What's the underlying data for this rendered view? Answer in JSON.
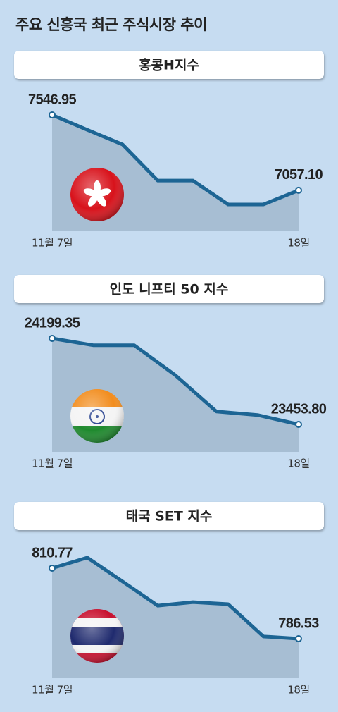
{
  "title": "주요 신흥국 최근 주식시장 추이",
  "chart_data": [
    {
      "type": "line",
      "title": "홍콩H지수",
      "categories": [
        "11월 7일",
        null,
        null,
        null,
        null,
        null,
        null,
        "18일"
      ],
      "values": [
        7546.95,
        7450,
        7355,
        7120,
        7120,
        6965,
        6965,
        7057.1
      ],
      "value_labels": [
        "7546.95",
        null,
        null,
        null,
        null,
        null,
        null,
        "7057.10"
      ],
      "color": "#1d6594"
    },
    {
      "type": "line",
      "title": "인도 니프티 50 지수",
      "categories": [
        "11월 7일",
        null,
        null,
        null,
        null,
        null,
        "18일"
      ],
      "values": [
        24199.35,
        24140,
        24140,
        23880,
        23565,
        23535,
        23453.8
      ],
      "value_labels": [
        "24199.35",
        null,
        null,
        null,
        null,
        null,
        "23453.80"
      ],
      "color": "#1d6594"
    },
    {
      "type": "line",
      "title": "태국 SET 지수",
      "categories": [
        "11월 7일",
        null,
        null,
        null,
        null,
        null,
        null,
        "18일"
      ],
      "values": [
        810.77,
        814.4,
        806.2,
        797.9,
        799.1,
        798.4,
        787.3,
        786.53
      ],
      "value_labels": [
        "810.77",
        null,
        null,
        null,
        null,
        null,
        null,
        "786.53"
      ],
      "color": "#1d6594"
    }
  ]
}
